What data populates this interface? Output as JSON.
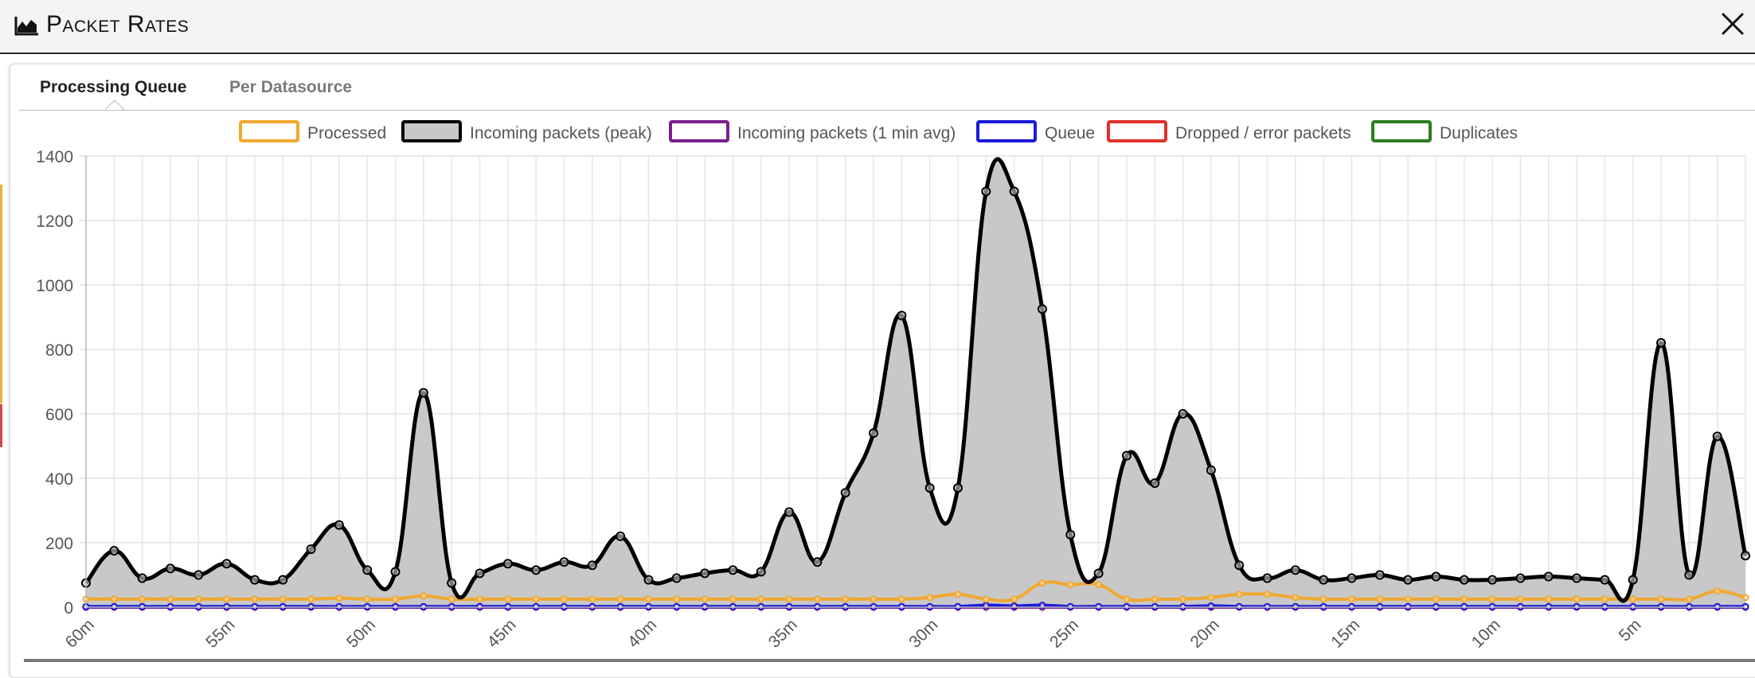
{
  "window": {
    "title": "Packet Rates",
    "icon": "area-chart-icon",
    "close_icon": "close-icon"
  },
  "tabs": [
    {
      "label": "Processing Queue",
      "active": true
    },
    {
      "label": "Per Datasource",
      "active": false
    }
  ],
  "chart_data": {
    "type": "line",
    "title": "",
    "xlabel": "",
    "ylabel": "",
    "ylim": [
      0,
      1400
    ],
    "yticks": [
      0,
      200,
      400,
      600,
      800,
      1000,
      1200,
      1400
    ],
    "x": [
      "60m",
      "59m",
      "58m",
      "57m",
      "56m",
      "55m",
      "54m",
      "53m",
      "52m",
      "51m",
      "50m",
      "49m",
      "48m",
      "47m",
      "46m",
      "45m",
      "44m",
      "43m",
      "42m",
      "41m",
      "40m",
      "39m",
      "38m",
      "37m",
      "36m",
      "35m",
      "34m",
      "33m",
      "32m",
      "31m",
      "30m",
      "29m",
      "28m",
      "27m",
      "26m",
      "25m",
      "24m",
      "23m",
      "22m",
      "21m",
      "20m",
      "19m",
      "18m",
      "17m",
      "16m",
      "15m",
      "14m",
      "13m",
      "12m",
      "11m",
      "10m",
      "9m",
      "8m",
      "7m",
      "6m",
      "5m",
      "4m",
      "3m",
      "2m",
      "1m"
    ],
    "xtick_labels": [
      "60m",
      "55m",
      "50m",
      "45m",
      "40m",
      "35m",
      "30m",
      "25m",
      "20m",
      "15m",
      "10m",
      "5m"
    ],
    "grid": true,
    "legend_position": "top",
    "series": [
      {
        "name": "Processed",
        "color": "#f0a830",
        "fill": false,
        "values": [
          25,
          25,
          25,
          25,
          25,
          25,
          25,
          25,
          25,
          28,
          25,
          25,
          35,
          25,
          25,
          25,
          25,
          25,
          25,
          25,
          25,
          25,
          25,
          25,
          25,
          25,
          25,
          25,
          25,
          25,
          30,
          40,
          25,
          25,
          75,
          70,
          70,
          25,
          25,
          25,
          30,
          40,
          40,
          30,
          25,
          25,
          25,
          25,
          25,
          25,
          25,
          25,
          25,
          25,
          25,
          25,
          25,
          25,
          50,
          30
        ]
      },
      {
        "name": "Incoming packets (peak)",
        "color": "#000000",
        "fill": true,
        "fill_color": "#c8c8c8",
        "values": [
          75,
          175,
          90,
          120,
          100,
          135,
          85,
          85,
          180,
          255,
          115,
          110,
          665,
          75,
          105,
          135,
          115,
          140,
          130,
          220,
          85,
          90,
          105,
          115,
          110,
          295,
          140,
          355,
          540,
          905,
          370,
          370,
          1290,
          1290,
          925,
          225,
          105,
          470,
          385,
          600,
          425,
          130,
          90,
          115,
          85,
          90,
          100,
          85,
          95,
          85,
          85,
          90,
          95,
          90,
          85,
          85,
          820,
          100,
          530,
          160
        ]
      },
      {
        "name": "Incoming packets (1 min avg)",
        "color": "#7a1f8c",
        "fill": false,
        "values": [
          0,
          0,
          0,
          0,
          0,
          0,
          0,
          0,
          0,
          0,
          0,
          0,
          0,
          0,
          0,
          0,
          0,
          0,
          0,
          0,
          0,
          0,
          0,
          0,
          0,
          0,
          0,
          0,
          0,
          0,
          0,
          0,
          0,
          0,
          0,
          0,
          0,
          0,
          0,
          0,
          0,
          0,
          0,
          0,
          0,
          0,
          0,
          0,
          0,
          0,
          0,
          0,
          0,
          0,
          0,
          0,
          0,
          0,
          0,
          0
        ]
      },
      {
        "name": "Queue",
        "color": "#1a1adb",
        "fill": false,
        "values": [
          2,
          2,
          2,
          2,
          2,
          2,
          2,
          2,
          2,
          2,
          2,
          2,
          2,
          2,
          2,
          2,
          2,
          2,
          2,
          2,
          2,
          2,
          2,
          2,
          2,
          2,
          2,
          2,
          2,
          2,
          2,
          2,
          6,
          4,
          6,
          2,
          2,
          2,
          2,
          2,
          4,
          2,
          2,
          2,
          2,
          2,
          2,
          2,
          2,
          2,
          2,
          2,
          2,
          2,
          2,
          2,
          2,
          2,
          2,
          2
        ]
      },
      {
        "name": "Dropped / error packets",
        "color": "#e0302a",
        "fill": false,
        "values": [
          0,
          0,
          0,
          0,
          0,
          0,
          0,
          0,
          0,
          0,
          0,
          0,
          0,
          0,
          0,
          0,
          0,
          0,
          0,
          0,
          0,
          0,
          0,
          0,
          0,
          0,
          0,
          0,
          0,
          0,
          0,
          0,
          0,
          0,
          0,
          0,
          0,
          0,
          0,
          0,
          0,
          0,
          0,
          0,
          0,
          0,
          0,
          0,
          0,
          0,
          0,
          0,
          0,
          0,
          0,
          0,
          0,
          0,
          0,
          0
        ]
      },
      {
        "name": "Duplicates",
        "color": "#2e7d1e",
        "fill": false,
        "values": [
          0,
          0,
          0,
          0,
          0,
          0,
          0,
          0,
          0,
          0,
          0,
          0,
          0,
          0,
          0,
          0,
          0,
          0,
          0,
          0,
          0,
          0,
          0,
          0,
          0,
          0,
          0,
          0,
          0,
          0,
          0,
          0,
          0,
          0,
          0,
          0,
          0,
          0,
          0,
          0,
          0,
          0,
          0,
          0,
          0,
          0,
          0,
          0,
          0,
          0,
          0,
          0,
          0,
          0,
          0,
          0,
          0,
          0,
          0,
          0
        ]
      }
    ]
  }
}
